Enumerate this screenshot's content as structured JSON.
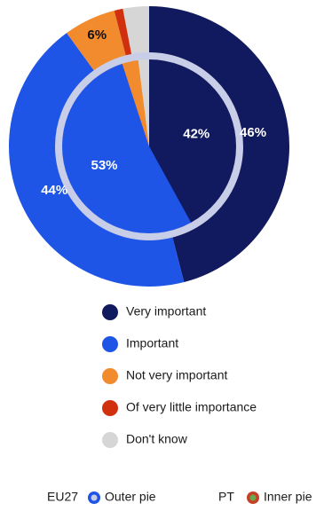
{
  "colors": {
    "very_important": "#111a5e",
    "important": "#1f55e6",
    "not_very_important": "#f28a2e",
    "little_importance": "#d1300f",
    "dont_know": "#d6d6d6",
    "ring": "#c8cde8",
    "label_light": "#ffffff",
    "label_dark": "#111111"
  },
  "chart_data": {
    "type": "pie",
    "categories": [
      "Very important",
      "Important",
      "Not very important",
      "Of very little importance",
      "Don't know"
    ],
    "series": [
      {
        "name": "EU27",
        "role": "Outer pie",
        "values": [
          46,
          44,
          6,
          1,
          3
        ],
        "labels": [
          "46%",
          "44%",
          "6%",
          "",
          ""
        ]
      },
      {
        "name": "PT",
        "role": "Inner pie",
        "values": [
          42,
          53,
          3,
          0,
          2
        ],
        "labels": [
          "42%",
          "53%",
          "",
          "",
          ""
        ]
      }
    ],
    "legend": {
      "position": "bottom",
      "items": [
        {
          "label": "Very important",
          "color": "#111a5e"
        },
        {
          "label": "Important",
          "color": "#1f55e6"
        },
        {
          "label": "Not very important",
          "color": "#f28a2e"
        },
        {
          "label": "Of very little importance",
          "color": "#d1300f"
        },
        {
          "label": "Don't know",
          "color": "#d6d6d6"
        }
      ]
    },
    "footnote": [
      {
        "text": "EU27",
        "suffix": "Outer pie",
        "icon": "outer-pie-icon"
      },
      {
        "text": "PT",
        "suffix": "Inner pie",
        "icon": "inner-pie-icon"
      }
    ]
  }
}
